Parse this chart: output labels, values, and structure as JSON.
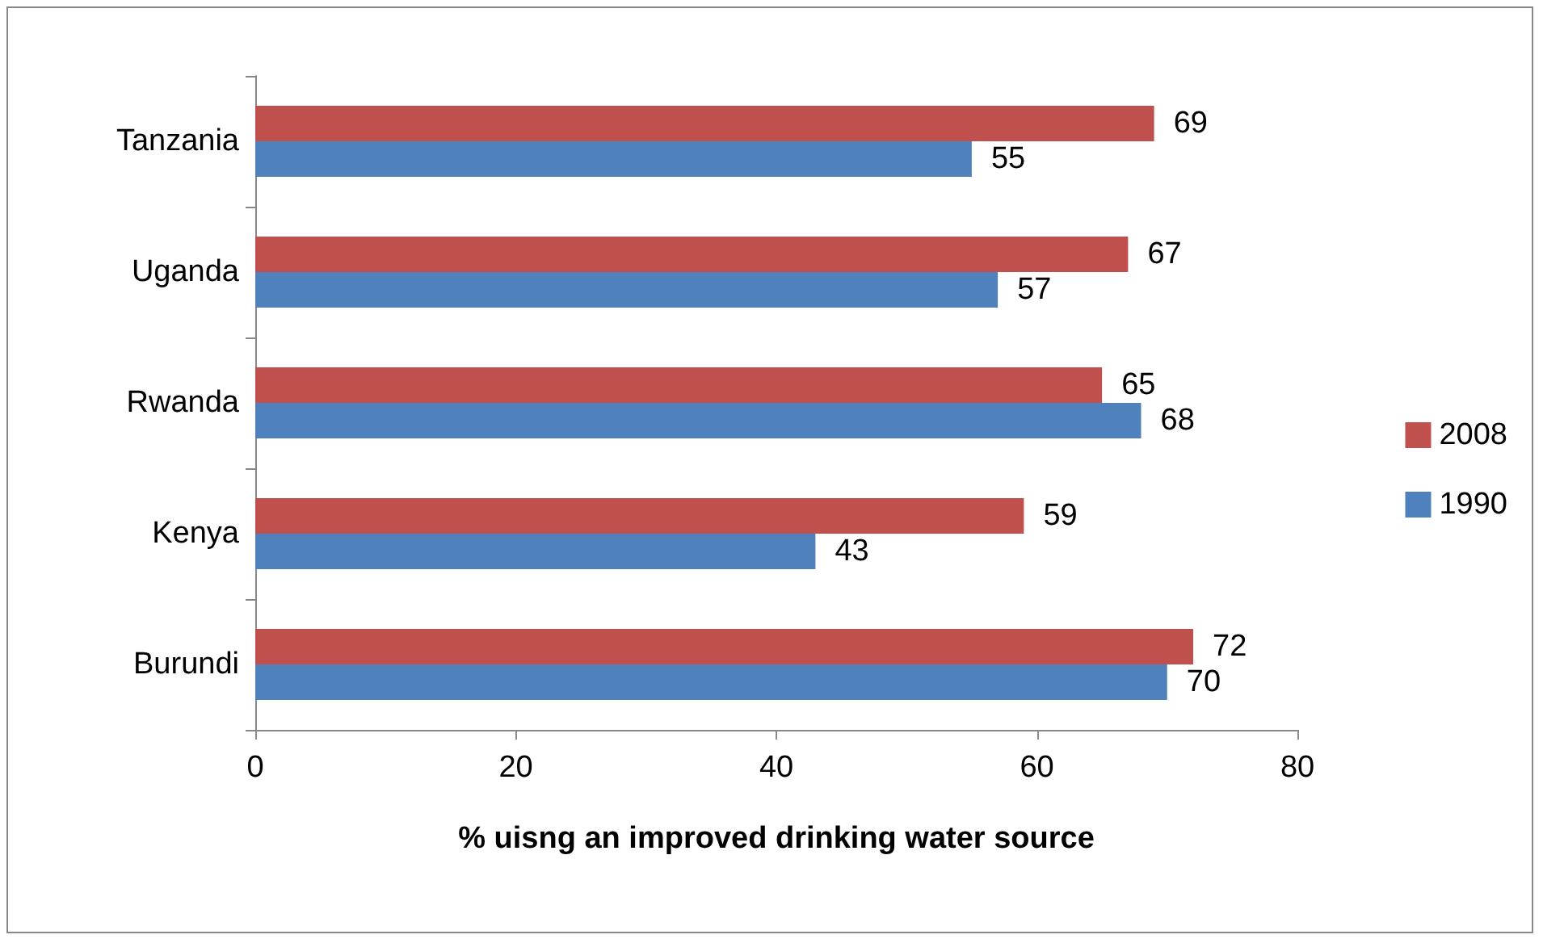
{
  "chart_data": {
    "type": "bar",
    "orientation": "horizontal",
    "xlabel": "% uisng an improved drinking water source",
    "categories": [
      "Tanzania",
      "Uganda",
      "Rwanda",
      "Kenya",
      "Burundi"
    ],
    "series": [
      {
        "name": "2008",
        "color": "#c0504d",
        "values": [
          69,
          67,
          65,
          59,
          72
        ]
      },
      {
        "name": "1990",
        "color": "#4f81bd",
        "values": [
          55,
          57,
          68,
          43,
          70
        ]
      }
    ],
    "xlim": [
      0,
      80
    ],
    "xticks": [
      0,
      20,
      40,
      60,
      80
    ],
    "grid": false,
    "legend": "right",
    "data_labels": true
  }
}
